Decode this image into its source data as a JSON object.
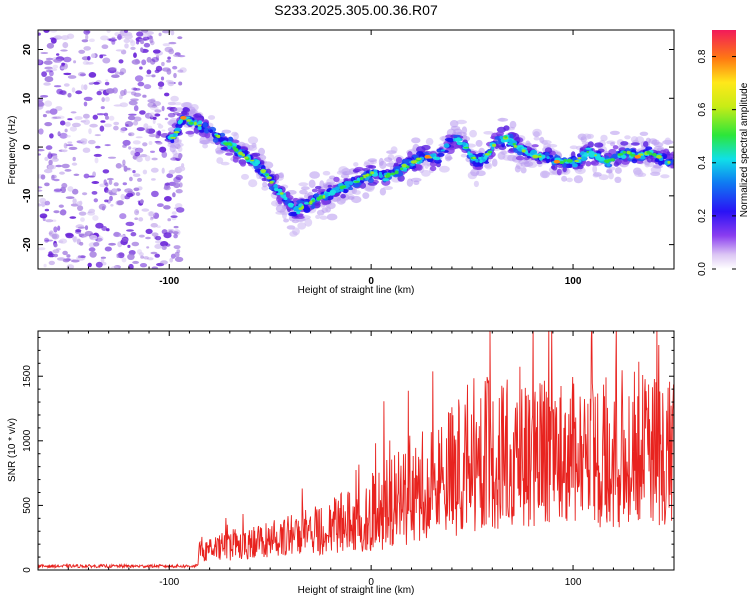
{
  "title": "S233.2025.305.00.36.R07",
  "colors": {
    "snr_line": "#e8231f",
    "axis": "#000000",
    "speckle": "#a37ce0",
    "speckle_dark": "#6a24d8"
  },
  "chart_data": [
    {
      "type": "heatmap",
      "xlabel": "Height of straight line (km)",
      "ylabel": "Frequency (Hz)",
      "xlim": [
        -165,
        150
      ],
      "ylim": [
        -25,
        24
      ],
      "xticks": [
        -100,
        0,
        100
      ],
      "xtick_labels": [
        "-100",
        "0",
        "100"
      ],
      "yticks": [
        -20,
        -10,
        0,
        10,
        20
      ],
      "ytick_labels": [
        "-20",
        "-10",
        "0",
        "10",
        "20"
      ],
      "noise_region_x": [
        -165,
        -95
      ],
      "ridge": {
        "x": [
          -98,
          -93,
          -88,
          -83,
          -78,
          -73,
          -68,
          -63,
          -58,
          -53,
          -48,
          -43,
          -38,
          -33,
          -28,
          -23,
          -18,
          -13,
          -8,
          -3,
          2,
          7,
          12,
          17,
          22,
          27,
          32,
          37,
          42,
          47,
          52,
          57,
          62,
          67,
          72,
          77,
          82,
          87,
          92,
          97,
          102,
          107,
          112,
          117,
          122,
          127,
          132,
          137,
          142,
          147
        ],
        "y": [
          2,
          6,
          5,
          4,
          3,
          1,
          0,
          -2,
          -3,
          -5,
          -8,
          -10,
          -13,
          -12,
          -11,
          -10,
          -9,
          -8,
          -7,
          -6,
          -5,
          -6,
          -5,
          -4,
          -3,
          -2,
          -2,
          0,
          2,
          0,
          -3,
          -2,
          1,
          2,
          0,
          -1,
          -2,
          -2,
          -3,
          -3,
          -3,
          -1,
          -2,
          -3,
          -2,
          -1,
          -2,
          -1,
          -2,
          -3
        ]
      },
      "colorbar": {
        "label": "Normalized spectral amplitude",
        "range": [
          0,
          0.9
        ],
        "ticks": [
          0.0,
          0.2,
          0.4,
          0.6,
          0.8
        ],
        "tick_labels": [
          "0.0",
          "0.2",
          "0.4",
          "0.6",
          "0.8"
        ]
      }
    },
    {
      "type": "line",
      "xlabel": "Height of straight line (km)",
      "ylabel": "SNR (10 * v/v)",
      "xlim": [
        -165,
        150
      ],
      "ylim": [
        0,
        1850
      ],
      "xticks": [
        -100,
        0,
        100
      ],
      "xtick_labels": [
        "-100",
        "0",
        "100"
      ],
      "yticks": [
        0,
        500,
        1000,
        1500
      ],
      "ytick_labels": [
        "0",
        "500",
        "1000",
        "1500"
      ],
      "envelope": {
        "x": [
          -165,
          -86,
          -85,
          -60,
          -40,
          -20,
          0,
          20,
          40,
          50,
          60,
          80,
          100,
          120,
          150
        ],
        "mean": [
          30,
          30,
          120,
          180,
          230,
          280,
          380,
          500,
          650,
          750,
          750,
          780,
          780,
          800,
          780
        ],
        "spread": [
          12,
          12,
          80,
          120,
          150,
          200,
          300,
          380,
          500,
          600,
          550,
          550,
          550,
          600,
          550
        ]
      }
    }
  ]
}
